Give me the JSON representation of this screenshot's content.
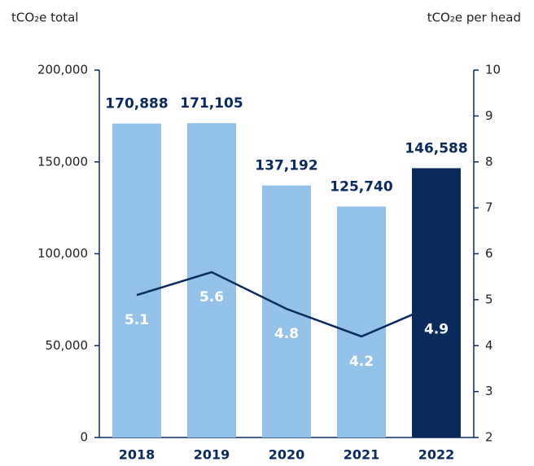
{
  "chart_data": {
    "type": "bar",
    "y_label": "tCO₂e total",
    "y2_label": "tCO₂e per head",
    "categories": [
      "2018",
      "2019",
      "2020",
      "2021",
      "2022"
    ],
    "series": [
      {
        "type": "bar",
        "values": [
          170888,
          171105,
          137192,
          125740,
          146588
        ],
        "value_labels": [
          "170,888",
          "171,105",
          "137,192",
          "125,740",
          "146,588"
        ],
        "colors": [
          "#93c1e8",
          "#93c1e8",
          "#93c1e8",
          "#93c1e8",
          "#0a2a5c"
        ]
      },
      {
        "type": "line",
        "axis": "y2",
        "values": [
          5.1,
          5.6,
          4.8,
          4.2,
          4.9
        ],
        "color": "#0a2a5c"
      }
    ],
    "ylim": [
      0,
      200000
    ],
    "yticks": [
      0,
      {
        "value": 50000,
        "label": "50,000"
      },
      {
        "value": 100000,
        "label": "100,000"
      },
      {
        "value": 150000,
        "label": "150,000"
      },
      {
        "value": 200000,
        "label": "200,000"
      }
    ],
    "y2lim": [
      2,
      10
    ],
    "y2ticks": [
      2,
      3,
      4,
      5,
      6,
      7,
      8,
      9,
      10
    ]
  }
}
